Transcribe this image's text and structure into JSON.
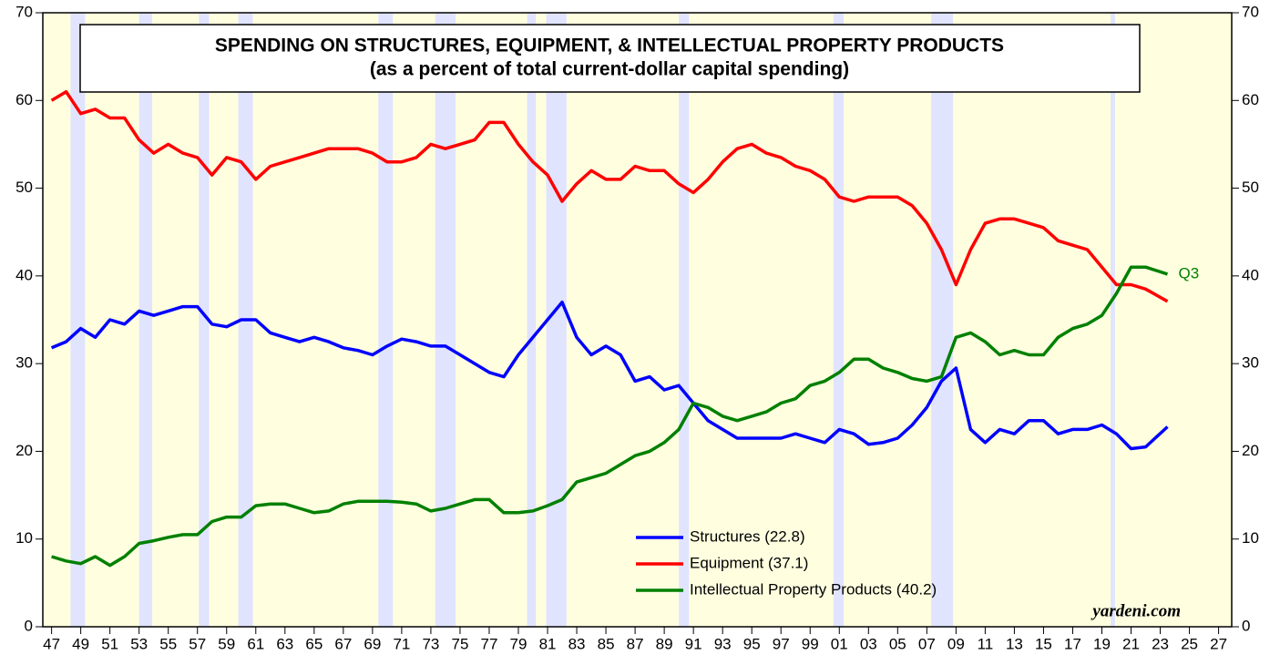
{
  "chart_data": {
    "type": "line",
    "title": "SPENDING ON STRUCTURES, EQUIPMENT, & INTELLECTUAL PROPERTY PRODUCTS",
    "subtitle": "(as a percent of total current-dollar capital spending)",
    "annotations": [
      "Q3",
      "yardeni.com"
    ],
    "x": [
      1947,
      1948,
      1949,
      1950,
      1951,
      1952,
      1953,
      1954,
      1955,
      1956,
      1957,
      1958,
      1959,
      1960,
      1961,
      1962,
      1963,
      1964,
      1965,
      1966,
      1967,
      1968,
      1969,
      1970,
      1971,
      1972,
      1973,
      1974,
      1975,
      1976,
      1977,
      1978,
      1979,
      1980,
      1981,
      1982,
      1983,
      1984,
      1985,
      1986,
      1987,
      1988,
      1989,
      1990,
      1991,
      1992,
      1993,
      1994,
      1995,
      1996,
      1997,
      1998,
      1999,
      2000,
      2001,
      2002,
      2003,
      2004,
      2005,
      2006,
      2007,
      2008,
      2009,
      2010,
      2011,
      2012,
      2013,
      2014,
      2015,
      2016,
      2017,
      2018,
      2019,
      2020,
      2021,
      2022,
      2023.5
    ],
    "series": [
      {
        "name": "Structures (22.8)",
        "color": "#0000ff",
        "values": [
          31.8,
          32.5,
          34,
          33,
          35,
          34.5,
          36,
          35.5,
          36,
          36.5,
          36.5,
          34.5,
          34.2,
          35,
          35,
          33.5,
          33,
          32.5,
          33,
          32.5,
          31.8,
          31.5,
          31,
          32,
          32.8,
          32.5,
          32,
          32,
          31,
          30,
          29,
          28.5,
          31,
          33,
          35,
          37,
          33,
          31,
          32,
          31,
          28,
          28.5,
          27,
          27.5,
          25.5,
          23.5,
          22.5,
          21.5,
          21.5,
          21.5,
          21.5,
          22,
          21.5,
          21,
          22.5,
          22,
          20.8,
          21,
          21.5,
          23,
          25,
          28,
          29.5,
          22.5,
          21,
          22.5,
          22,
          23.5,
          23.5,
          22,
          22.5,
          22.5,
          23,
          22,
          20.3,
          20.5,
          22.8
        ]
      },
      {
        "name": "Equipment (37.1)",
        "color": "#ff0000",
        "values": [
          60,
          61,
          58.5,
          59,
          58,
          58,
          55.5,
          54,
          55,
          54,
          53.5,
          51.5,
          53.5,
          53,
          51,
          52.5,
          53,
          53.5,
          54,
          54.5,
          54.5,
          54.5,
          54,
          53,
          53,
          53.5,
          55,
          54.5,
          55,
          55.5,
          57.5,
          57.5,
          55,
          53,
          51.5,
          48.5,
          50.5,
          52,
          51,
          51,
          52.5,
          52,
          52,
          50.5,
          49.5,
          51,
          53,
          54.5,
          55,
          54,
          53.5,
          52.5,
          52,
          51,
          49,
          48.5,
          49,
          49,
          49,
          48,
          46,
          43,
          39,
          43,
          46,
          46.5,
          46.5,
          46,
          45.5,
          44,
          43.5,
          43,
          41,
          39,
          39,
          38.5,
          37.1
        ]
      },
      {
        "name": "Intellectual Property Products (40.2)",
        "color": "#008000",
        "values": [
          8,
          7.5,
          7.2,
          8,
          7,
          8,
          9.5,
          9.8,
          10.2,
          10.5,
          10.5,
          12,
          12.5,
          12.5,
          13.8,
          14,
          14,
          13.5,
          13,
          13.2,
          14,
          14.3,
          14.3,
          14.3,
          14.2,
          14,
          13.2,
          13.5,
          14,
          14.5,
          14.5,
          13,
          13,
          13.2,
          13.8,
          14.5,
          16.5,
          17,
          17.5,
          18.5,
          19.5,
          20,
          21,
          22.5,
          25.5,
          25,
          24,
          23.5,
          24,
          24.5,
          25.5,
          26,
          27.5,
          28,
          29,
          30.5,
          30.5,
          29.5,
          29,
          28.3,
          28,
          28.5,
          33,
          33.5,
          32.5,
          31,
          31.5,
          31,
          31,
          33,
          34,
          34.5,
          35.5,
          38,
          41,
          41,
          40.2
        ]
      }
    ],
    "recessions": [
      [
        1948.3,
        1949.3
      ],
      [
        1953.0,
        1953.9
      ],
      [
        1957.1,
        1957.8
      ],
      [
        1959.8,
        1960.8
      ],
      [
        1969.4,
        1970.4
      ],
      [
        1973.3,
        1974.7
      ],
      [
        1979.6,
        1980.2
      ],
      [
        1980.9,
        1982.3
      ],
      [
        1990.0,
        1990.7
      ],
      [
        2000.6,
        2001.3
      ],
      [
        2007.3,
        2008.8
      ],
      [
        2019.6,
        2019.9
      ]
    ],
    "xlim": [
      1946.4,
      2027.9
    ],
    "ylim": [
      0,
      70
    ],
    "y2lim": [
      0,
      70
    ],
    "yticks": [
      0,
      10,
      20,
      30,
      40,
      50,
      60,
      70
    ],
    "y2ticks": [
      0,
      10,
      20,
      30,
      40,
      50,
      60,
      70
    ],
    "xticks": [
      {
        "value": 1947,
        "label": "47"
      },
      {
        "value": 1949,
        "label": "49"
      },
      {
        "value": 1951,
        "label": "51"
      },
      {
        "value": 1953,
        "label": "53"
      },
      {
        "value": 1955,
        "label": "55"
      },
      {
        "value": 1957,
        "label": "57"
      },
      {
        "value": 1959,
        "label": "59"
      },
      {
        "value": 1961,
        "label": "61"
      },
      {
        "value": 1963,
        "label": "63"
      },
      {
        "value": 1965,
        "label": "65"
      },
      {
        "value": 1967,
        "label": "67"
      },
      {
        "value": 1969,
        "label": "69"
      },
      {
        "value": 1971,
        "label": "71"
      },
      {
        "value": 1973,
        "label": "73"
      },
      {
        "value": 1975,
        "label": "75"
      },
      {
        "value": 1977,
        "label": "77"
      },
      {
        "value": 1979,
        "label": "79"
      },
      {
        "value": 1981,
        "label": "81"
      },
      {
        "value": 1983,
        "label": "83"
      },
      {
        "value": 1985,
        "label": "85"
      },
      {
        "value": 1987,
        "label": "87"
      },
      {
        "value": 1989,
        "label": "89"
      },
      {
        "value": 1991,
        "label": "91"
      },
      {
        "value": 1993,
        "label": "93"
      },
      {
        "value": 1995,
        "label": "95"
      },
      {
        "value": 1997,
        "label": "97"
      },
      {
        "value": 1999,
        "label": "99"
      },
      {
        "value": 2001,
        "label": "01"
      },
      {
        "value": 2003,
        "label": "03"
      },
      {
        "value": 2005,
        "label": "05"
      },
      {
        "value": 2007,
        "label": "07"
      },
      {
        "value": 2009,
        "label": "09"
      },
      {
        "value": 2011,
        "label": "11"
      },
      {
        "value": 2013,
        "label": "13"
      },
      {
        "value": 2015,
        "label": "15"
      },
      {
        "value": 2017,
        "label": "17"
      },
      {
        "value": 2019,
        "label": "19"
      },
      {
        "value": 2021,
        "label": "21"
      },
      {
        "value": 2023,
        "label": "23"
      },
      {
        "value": 2025,
        "label": "25"
      },
      {
        "value": 2027,
        "label": "27"
      }
    ],
    "background": "#ffffe0",
    "recession_color": "#e0e4ff"
  }
}
